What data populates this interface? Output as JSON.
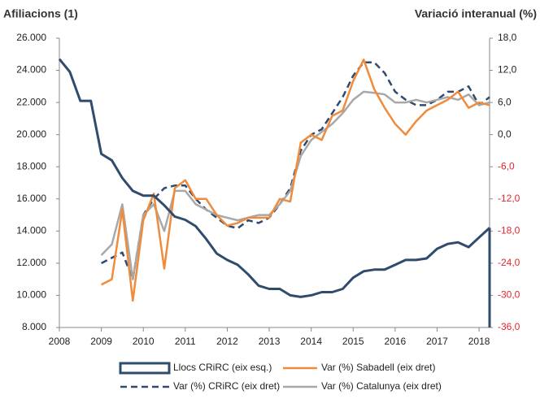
{
  "chart_data": {
    "type": "line",
    "title": "Afiliacions (1)",
    "y2_title": "Variació interanual (%)",
    "x": [
      2008,
      2008.25,
      2008.5,
      2008.75,
      2009,
      2009.25,
      2009.5,
      2009.75,
      2010,
      2010.25,
      2010.5,
      2010.75,
      2011,
      2011.25,
      2011.5,
      2011.75,
      2012,
      2012.25,
      2012.5,
      2012.75,
      2013,
      2013.25,
      2013.5,
      2013.75,
      2014,
      2014.25,
      2014.5,
      2014.75,
      2015,
      2015.25,
      2015.5,
      2015.75,
      2016,
      2016.25,
      2016.5,
      2016.75,
      2017,
      2017.25,
      2017.5,
      2017.75,
      2018,
      2018.25
    ],
    "xlim": [
      2008,
      2018.25
    ],
    "xticks": [
      2008,
      2009,
      2010,
      2011,
      2012,
      2013,
      2014,
      2015,
      2016,
      2017,
      2018
    ],
    "ylim": [
      8000,
      26000
    ],
    "yticks": [
      {
        "value": 8000,
        "label": "8.000"
      },
      {
        "value": 10000,
        "label": "10.000"
      },
      {
        "value": 12000,
        "label": "12.000"
      },
      {
        "value": 14000,
        "label": "14.000"
      },
      {
        "value": 16000,
        "label": "16.000"
      },
      {
        "value": 18000,
        "label": "18.000"
      },
      {
        "value": 20000,
        "label": "20.000"
      },
      {
        "value": 22000,
        "label": "22.000"
      },
      {
        "value": 24000,
        "label": "24.000"
      },
      {
        "value": 26000,
        "label": "26.000"
      }
    ],
    "y2lim": [
      -36,
      18
    ],
    "y2ticks": [
      {
        "value": -36,
        "label": "-36,0"
      },
      {
        "value": -30,
        "label": "-30,0"
      },
      {
        "value": -24,
        "label": "-24,0"
      },
      {
        "value": -18,
        "label": "-18,0"
      },
      {
        "value": -12,
        "label": "-12,0"
      },
      {
        "value": -6,
        "label": "-6,0"
      },
      {
        "value": 0,
        "label": "0,0"
      },
      {
        "value": 6,
        "label": "6,0"
      },
      {
        "value": 12,
        "label": "12,0"
      },
      {
        "value": 18,
        "label": "18,0"
      }
    ],
    "negative_tick_color": "#e3262b",
    "series": [
      {
        "name": "Llocs CRiRC (eix esq.)",
        "color": "#2f4b6e",
        "style": "area",
        "values": [
          24700,
          23900,
          22100,
          22100,
          18800,
          18400,
          17300,
          16500,
          16200,
          16200,
          15600,
          14900,
          14700,
          14300,
          13500,
          12600,
          12200,
          11900,
          11300,
          10600,
          10400,
          10400,
          10000,
          9900,
          10000,
          10200,
          10200,
          10400,
          11100,
          11500,
          11600,
          11600,
          11900,
          12200,
          12200,
          12300,
          12900,
          13200,
          13300,
          13000,
          13600,
          14200
        ]
      },
      {
        "name": "Var (%) Sabadell (eix dret)",
        "color": "#f08b3b",
        "style": "solid",
        "axis": "y2",
        "values": [
          null,
          null,
          null,
          null,
          -28,
          -27,
          -14,
          -31,
          -16,
          -11,
          -25,
          -10,
          -8.5,
          -12,
          -12,
          -15,
          -17,
          -16.5,
          -15.5,
          -15.5,
          -15.5,
          -12,
          -12.5,
          -1.5,
          0,
          -1,
          3.5,
          4.5,
          10,
          14,
          8.5,
          5,
          2,
          0,
          2.5,
          4.5,
          5.5,
          6.5,
          8,
          5,
          6,
          5.5
        ]
      },
      {
        "name": "Var (%) CRiRC (eix dret)",
        "color": "#2f4b6e",
        "style": "dashed",
        "axis": "y2",
        "values": [
          null,
          null,
          null,
          null,
          -24,
          -23,
          -22,
          -27,
          -15,
          -12,
          -10,
          -9.5,
          -9.5,
          -12,
          -14,
          -15.5,
          -17,
          -17.5,
          -16,
          -16.5,
          -15.5,
          -13,
          -10,
          -3,
          0,
          1,
          4,
          7,
          11,
          13.5,
          13.5,
          11.5,
          8,
          6.5,
          5.5,
          5.5,
          6.5,
          8,
          8,
          9,
          5.5,
          7
        ]
      },
      {
        "name": "Var (%) Catalunya (eix dret)",
        "color": "#a8a8a8",
        "style": "solid",
        "axis": "y2",
        "values": [
          null,
          null,
          null,
          null,
          -22.5,
          -20.5,
          -13,
          -27,
          -15,
          -13,
          -18,
          -10.5,
          -10.5,
          -13,
          -14,
          -15,
          -15.5,
          -16,
          -15.5,
          -15,
          -15,
          -13,
          -10.5,
          -4,
          -1,
          0.5,
          2,
          4,
          6.5,
          8,
          7.8,
          7.5,
          6,
          6,
          6.5,
          6,
          6.5,
          7,
          6.5,
          7.5,
          5.5,
          6
        ]
      }
    ]
  }
}
